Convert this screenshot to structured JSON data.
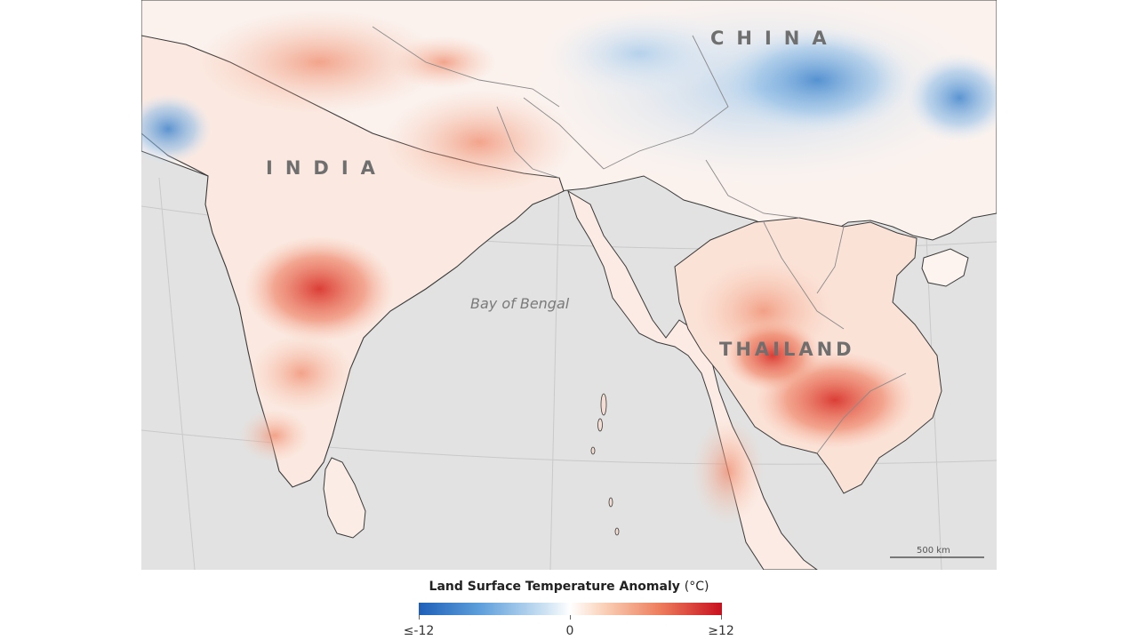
{
  "map": {
    "labels": {
      "china": "CHINA",
      "india": "INDIA",
      "thailand": "THAILAND",
      "bay_of_bengal": "Bay of Bengal"
    },
    "scale_bar": {
      "label": "500 km"
    },
    "colors": {
      "ocean": "#e2e2e2",
      "coastline": "#3a3a3a",
      "cold": "#1f5fb8",
      "neutral": "#ffffff",
      "hot": "#c8101f"
    }
  },
  "legend": {
    "title": "Land Surface Temperature Anomaly",
    "unit": "(°C)",
    "min_label": "≤-12",
    "mid_label": "0",
    "max_label": "≥12"
  }
}
